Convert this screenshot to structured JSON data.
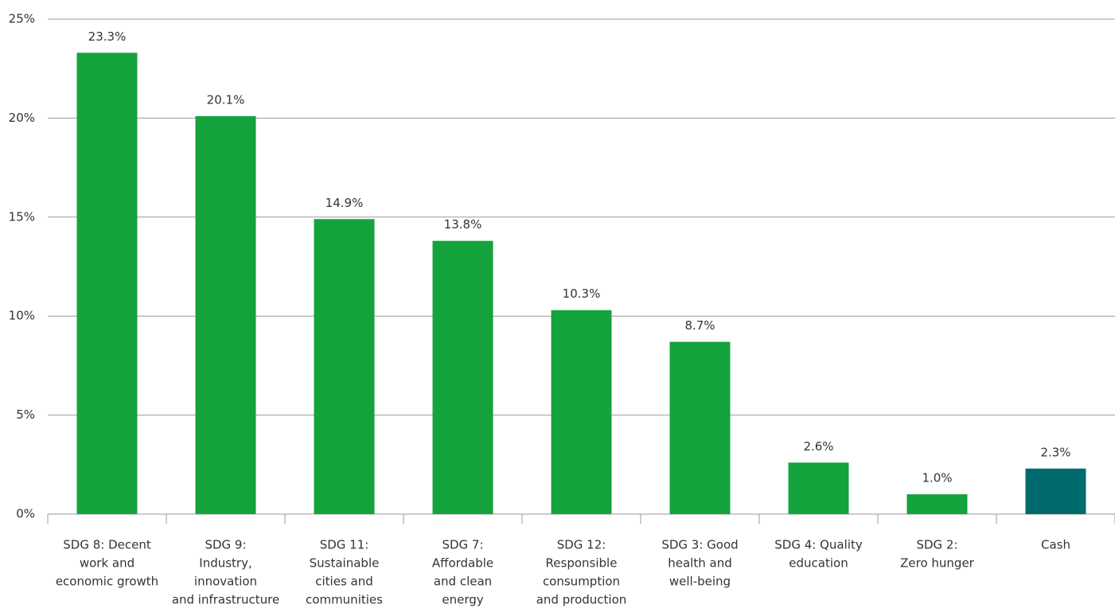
{
  "chart_data": {
    "type": "bar",
    "categories": [
      [
        "SDG 8: Decent",
        "work and",
        "economic growth"
      ],
      [
        "SDG 9:",
        "Industry,",
        "innovation",
        "and infrastructure"
      ],
      [
        "SDG 11:",
        "Sustainable",
        "cities and",
        "communities"
      ],
      [
        "SDG 7:",
        "Affordable",
        "and clean",
        "energy"
      ],
      [
        "SDG 12:",
        "Responsible",
        "consumption",
        "and production"
      ],
      [
        "SDG 3: Good",
        "health and",
        "well-being"
      ],
      [
        "SDG 4: Quality",
        "education"
      ],
      [
        "SDG 2:",
        "Zero hunger"
      ],
      [
        "Cash"
      ]
    ],
    "values": [
      23.3,
      20.1,
      14.9,
      13.8,
      10.3,
      8.7,
      2.6,
      1.0,
      2.3
    ],
    "value_labels": [
      "23.3%",
      "20.1%",
      "14.9%",
      "13.8%",
      "10.3%",
      "8.7%",
      "2.6%",
      "1.0%",
      "2.3%"
    ],
    "colors": [
      "#14a33c",
      "#14a33c",
      "#14a33c",
      "#14a33c",
      "#14a33c",
      "#14a33c",
      "#14a33c",
      "#14a33c",
      "#006b6e"
    ],
    "ylim": [
      0,
      25
    ],
    "yticks": [
      {
        "value": 0,
        "label": "0%"
      },
      {
        "value": 5,
        "label": "5%"
      },
      {
        "value": 10,
        "label": "10%"
      },
      {
        "value": 15,
        "label": "15%"
      },
      {
        "value": 20,
        "label": "20%"
      },
      {
        "value": 25,
        "label": "25%"
      }
    ],
    "grid": true
  }
}
